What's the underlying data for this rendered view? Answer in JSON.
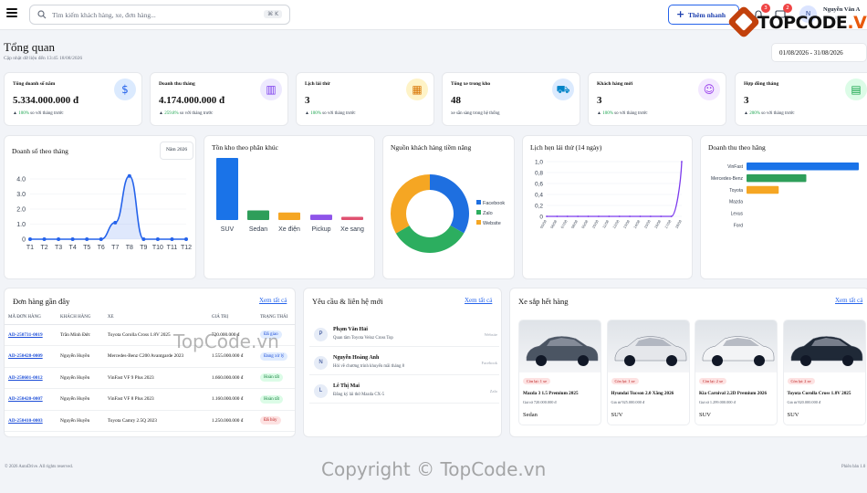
{
  "search": {
    "placeholder": "Tìm kiếm khách hàng, xe, đơn hàng...",
    "shortcut": "⌘ K"
  },
  "topbar": {
    "quick_label": "Thêm nhanh",
    "notif_count": "3",
    "msg_count": "2",
    "user_initial": "N",
    "user_name": "Nguyễn Văn A",
    "user_role": "Quản lý"
  },
  "watermark": {
    "logo_a": "TOPCODE",
    "logo_b": ".VN",
    "mid": "TopCode.vn",
    "bottom": "Copyright © TopCode.vn"
  },
  "header": {
    "title": "Tổng quan",
    "updated": "Cập nhật dữ liệu đến 13:45 18/08/2026",
    "date_range": "01/08/2026 - 31/08/2026"
  },
  "stats": [
    {
      "label": "Tổng doanh số năm",
      "value": "5.334.000.000 đ",
      "change": "100%",
      "change_text": "so với tháng trước",
      "icon": "dollar-icon",
      "glyph": "$",
      "bg": "#dbeafe",
      "fg": "#2563eb"
    },
    {
      "label": "Doanh thu tháng",
      "value": "4.174.000.000 đ",
      "change": "259.8%",
      "change_text": "so với tháng trước",
      "icon": "bar-chart-icon",
      "glyph": "▥",
      "bg": "#ede9fe",
      "fg": "#7c3aed"
    },
    {
      "label": "Lịch lái thử",
      "value": "3",
      "change": "100%",
      "change_text": "so với tháng trước",
      "icon": "calendar-icon",
      "glyph": "▦",
      "bg": "#fef3c7",
      "fg": "#d97706"
    },
    {
      "label": "Tổng xe trong kho",
      "value": "48",
      "change": "",
      "change_text": "xe sẵn sàng trong hệ thống",
      "icon": "car-icon",
      "glyph": "⛟",
      "bg": "#dbeafe",
      "fg": "#0284c7"
    },
    {
      "label": "Khách hàng mới",
      "value": "3",
      "change": "100%",
      "change_text": "so với tháng trước",
      "icon": "user-icon",
      "glyph": "☺",
      "bg": "#f3e8ff",
      "fg": "#9333ea"
    },
    {
      "label": "Hợp đồng tháng",
      "value": "3",
      "change": "200%",
      "change_text": "so với tháng trước",
      "icon": "document-icon",
      "glyph": "▤",
      "bg": "#dcfce7",
      "fg": "#16a34a"
    }
  ],
  "sales_chart": {
    "title": "Doanh số theo tháng",
    "year": "Năm 2026"
  },
  "stock_chart": {
    "title": "Tồn kho theo phân khúc"
  },
  "source_chart": {
    "title": "Nguồn khách hàng tiềm năng"
  },
  "testdrive_chart": {
    "title": "Lịch hẹn lái thử (14 ngày)"
  },
  "brand_chart": {
    "title": "Doanh thu theo hãng"
  },
  "chart_data": [
    {
      "type": "area",
      "title": "Doanh số theo tháng",
      "categories": [
        "T1",
        "T2",
        "T3",
        "T4",
        "T5",
        "T6",
        "T7",
        "T8",
        "T9",
        "T10",
        "T11",
        "T12"
      ],
      "values": [
        0,
        0,
        0,
        0,
        0,
        0,
        1.1,
        4.2,
        0,
        0,
        0,
        0
      ],
      "yticks": [
        "0",
        "1.0",
        "2.0",
        "3.0",
        "4.0"
      ],
      "ylim": [
        0,
        4.4
      ],
      "color": "#2563eb"
    },
    {
      "type": "bar",
      "title": "Tồn kho theo phân khúc",
      "categories": [
        "SUV",
        "Sedan",
        "Xe điện",
        "Pickup",
        "Xe sang"
      ],
      "values": [
        29,
        4.5,
        3.5,
        2.5,
        1.5
      ],
      "colors": [
        "#1a73e8",
        "#2e9e5a",
        "#f5a623",
        "#8e54e9",
        "#e05170"
      ]
    },
    {
      "type": "pie",
      "title": "Nguồn khách hàng tiềm năng",
      "series": [
        {
          "name": "Facebook",
          "value": 33.3,
          "color": "#1e6fe0"
        },
        {
          "name": "Zalo",
          "value": 33.3,
          "color": "#2cae5f"
        },
        {
          "name": "Website",
          "value": 33.4,
          "color": "#f5a623"
        }
      ]
    },
    {
      "type": "line",
      "title": "Lịch hẹn lái thử (14 ngày)",
      "categories": [
        "05/08",
        "06/08",
        "07/08",
        "08/08",
        "09/08",
        "10/08",
        "11/08",
        "12/08",
        "13/08",
        "14/08",
        "15/08",
        "16/08",
        "17/08",
        "18/08"
      ],
      "values": [
        0,
        0,
        0,
        0,
        0,
        0,
        0,
        0,
        0,
        0,
        0,
        0,
        0,
        1.0
      ],
      "yticks": [
        "0",
        "0,2",
        "0,4",
        "0,6",
        "0,8",
        "1,0"
      ],
      "ylim": [
        0,
        1.0
      ],
      "color": "#7c3aed"
    },
    {
      "type": "bar",
      "orientation": "horizontal",
      "title": "Doanh thu theo hãng",
      "categories": [
        "VinFast",
        "Mercedes-Benz",
        "Toyota",
        "Mazda",
        "Lexus",
        "Ford"
      ],
      "values": [
        2.93,
        1.56,
        0.84,
        0,
        0,
        0
      ],
      "colors": [
        "#1a73e8",
        "#2e9e5a",
        "#f5a623",
        "#8e54e9",
        "#e05170",
        "#0ea5e9"
      ]
    }
  ],
  "orders": {
    "title": "Đơn hàng gần đây",
    "see_all": "Xem tất cả",
    "headers": [
      "MÃ ĐƠN HÀNG",
      "KHÁCH HÀNG",
      "XE",
      "GIÁ TRỊ",
      "TRẠNG THÁI"
    ],
    "rows": [
      {
        "code": "AD-250731-0019",
        "customer": "Trần Minh Đức",
        "car": "Toyota Corolla Cross 1.8V 2025",
        "value": "720.000.000 đ",
        "status": "Đã giao",
        "sbg": "#e0ecff",
        "sfg": "#1d4ed8"
      },
      {
        "code": "AD-250428-0009",
        "customer": "Nguyễn Huyền",
        "car": "Mercedes-Benz C200 Avantgarde 2023",
        "value": "1.555.000.000 đ",
        "status": "Đang xử lý",
        "sbg": "#e0ecff",
        "sfg": "#1d4ed8"
      },
      {
        "code": "AD-250601-0012",
        "customer": "Nguyễn Huyền",
        "car": "VinFast VF 9 Plus 2023",
        "value": "1.660.000.000 đ",
        "status": "Hoàn tất",
        "sbg": "#dcfce7",
        "sfg": "#15803d"
      },
      {
        "code": "AD-250420-0007",
        "customer": "Nguyễn Huyền",
        "car": "VinFast VF 8 Plus 2023",
        "value": "1.160.000.000 đ",
        "status": "Hoàn tất",
        "sbg": "#dcfce7",
        "sfg": "#15803d"
      },
      {
        "code": "AD-250410-0003",
        "customer": "Nguyễn Huyền",
        "car": "Toyota Camry 2.5Q 2023",
        "value": "1.250.000.000 đ",
        "status": "Đã hủy",
        "sbg": "#fde2e2",
        "sfg": "#b91c1c"
      }
    ]
  },
  "contacts": {
    "title": "Yêu cầu & liên hệ mới",
    "see_all": "Xem tất cả",
    "items": [
      {
        "initial": "P",
        "name": "Phạm Văn Hải",
        "message": "Quan tâm Toyota Veloz Cross Top",
        "source": "Website"
      },
      {
        "initial": "N",
        "name": "Nguyễn Hoàng Anh",
        "message": "Hỏi về chương trình khuyến mãi tháng 8",
        "source": "Facebook"
      },
      {
        "initial": "L",
        "name": "Lê Thị Mai",
        "message": "Đăng ký lái thử Mazda CX-5",
        "source": "Zalo"
      }
    ]
  },
  "stock_low": {
    "title": "Xe sắp hết hàng",
    "see_all": "Xem tất cả",
    "cars": [
      {
        "tag": "Còn lại: 1 xe",
        "name": "Mazda 3 1.5 Premium 2025",
        "price": "Giá từ 720.000.000 đ",
        "type": "Sedan",
        "color": "#4b5563"
      },
      {
        "tag": "Còn lại: 1 xe",
        "name": "Hyundai Tucson 2.0 Xăng 2026",
        "price": "Giá từ 925.000.000 đ",
        "type": "SUV",
        "color": "#e5e7eb"
      },
      {
        "tag": "Còn lại: 2 xe",
        "name": "Kia Carnival 2.2D Premium 2026",
        "price": "Giá từ 1.299.000.000 đ",
        "type": "SUV",
        "color": "#f3f4f6"
      },
      {
        "tag": "Còn lại: 2 xe",
        "name": "Toyota Corolla Cross 1.8V 2025",
        "price": "Giá từ 820.000.000 đ",
        "type": "SUV",
        "color": "#1f2937"
      }
    ]
  },
  "footer": {
    "left": "© 2026 AutoDrive. All rights reserved.",
    "right": "Phiên bản 1.0"
  }
}
